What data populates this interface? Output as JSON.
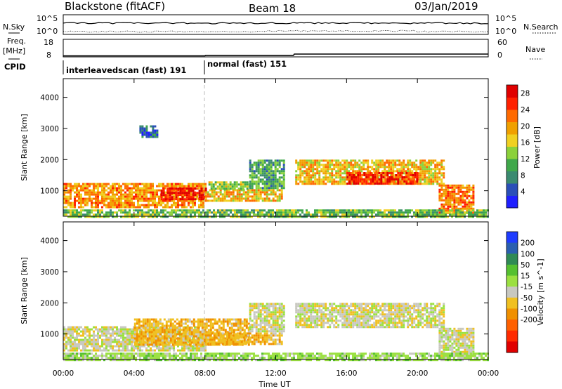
{
  "title": {
    "station": "Blackstone (fitACF)",
    "beam": "Beam 18",
    "date": "03/Jan/2019"
  },
  "summary": {
    "nsky_label": "N.Sky",
    "nsearch_label": "N.Search",
    "nsky_ticks": [
      "10^5",
      "10^0"
    ],
    "freq_label_1": "Freq.",
    "freq_label_2": "[MHz]",
    "freq_ticks": [
      "18",
      "8"
    ],
    "nave_label": "Nave",
    "nave_ticks": [
      "60",
      "0"
    ],
    "cpid_label": "CPID",
    "cpid_segments": [
      {
        "name": "interleavedscan (fast) 191",
        "start_h": 0,
        "end_h": 8
      },
      {
        "name": "normal (fast) 151",
        "start_h": 8,
        "end_h": 24
      }
    ],
    "freq_series": [
      {
        "t": 0,
        "f": 8.6
      },
      {
        "t": 8,
        "f": 8.6
      },
      {
        "t": 8.05,
        "f": 8.9
      },
      {
        "t": 13,
        "f": 8.9
      },
      {
        "t": 13.05,
        "f": 9.6
      },
      {
        "t": 24,
        "f": 9.6
      }
    ]
  },
  "chart_data": [
    {
      "type": "heatmap",
      "parameter": "Power",
      "xlabel": "Time UT",
      "ylabel": "Slant Range [km]",
      "xlim": [
        0,
        24
      ],
      "ylim": [
        180,
        4600
      ],
      "x_ticks": [
        "00:00",
        "04:00",
        "08:00",
        "12:00",
        "16:00",
        "20:00",
        "00:00"
      ],
      "x_tick_values": [
        0,
        4,
        8,
        12,
        16,
        20,
        24
      ],
      "y_ticks": [
        1000,
        2000,
        3000,
        4000
      ],
      "colorbar": {
        "label": "Power [dB]",
        "ticks": [
          4,
          8,
          12,
          16,
          20,
          24,
          28
        ],
        "range": [
          0,
          30
        ],
        "colors": [
          "#1f1fff",
          "#2a4fb8",
          "#3a8a70",
          "#3fa84a",
          "#8bd13a",
          "#f0d020",
          "#f0a000",
          "#ff6a00",
          "#ff2000",
          "#e00000"
        ]
      },
      "regions": [
        {
          "t0": 0,
          "t1": 8,
          "r0": 500,
          "r1": 1250,
          "value": 20
        },
        {
          "t0": 5.5,
          "t1": 8,
          "r0": 700,
          "r1": 1100,
          "value": 28
        },
        {
          "t0": 8,
          "t1": 12.3,
          "r0": 650,
          "r1": 1050,
          "value": 18
        },
        {
          "t0": 8.2,
          "t1": 10.5,
          "r0": 1050,
          "r1": 1300,
          "value": 14
        },
        {
          "t0": 10.5,
          "t1": 12.5,
          "r0": 1100,
          "r1": 2000,
          "value": 10
        },
        {
          "t0": 13.1,
          "t1": 21.5,
          "r0": 1200,
          "r1": 2000,
          "value": 18
        },
        {
          "t0": 16,
          "t1": 20,
          "r0": 1250,
          "r1": 1600,
          "value": 26
        },
        {
          "t0": 21.2,
          "t1": 23.2,
          "r0": 300,
          "r1": 1200,
          "value": 22
        },
        {
          "t0": 0,
          "t1": 24,
          "r0": 180,
          "r1": 400,
          "value": 12
        },
        {
          "t0": 4.3,
          "t1": 5.3,
          "r0": 2700,
          "r1": 3100,
          "value": 6
        }
      ]
    },
    {
      "type": "heatmap",
      "parameter": "Velocity",
      "xlabel": "Time UT",
      "ylabel": "Slant Range [km]",
      "xlim": [
        0,
        24
      ],
      "ylim": [
        180,
        4600
      ],
      "x_ticks": [
        "00:00",
        "04:00",
        "08:00",
        "12:00",
        "16:00",
        "20:00",
        "00:00"
      ],
      "x_tick_values": [
        0,
        4,
        8,
        12,
        16,
        20,
        24
      ],
      "y_ticks": [
        1000,
        2000,
        3000,
        4000
      ],
      "colorbar": {
        "label": "Velocity [m s^-1]",
        "ticks": [
          "200",
          "100",
          "50",
          "15",
          "-15",
          "-50",
          "-100",
          "-200"
        ],
        "colors": [
          "#1f3cff",
          "#2a5fb0",
          "#2f8a55",
          "#55c030",
          "#9be040",
          "#c8c8c0",
          "#f0c020",
          "#f09000",
          "#ff6000",
          "#ff2a00",
          "#e00000"
        ]
      },
      "regions": [
        {
          "t0": 0,
          "t1": 8,
          "r0": 500,
          "r1": 1250,
          "value": 0
        },
        {
          "t0": 4,
          "t1": 10.5,
          "r0": 650,
          "r1": 1500,
          "value": -40
        },
        {
          "t0": 8,
          "t1": 12.3,
          "r0": 650,
          "r1": 1050,
          "value": -40
        },
        {
          "t0": 10.5,
          "t1": 12.5,
          "r0": 1100,
          "r1": 2000,
          "value": 0
        },
        {
          "t0": 13.1,
          "t1": 21.5,
          "r0": 1200,
          "r1": 2000,
          "value": 0
        },
        {
          "t0": 21.2,
          "t1": 23.2,
          "r0": 300,
          "r1": 1200,
          "value": 0
        },
        {
          "t0": 0,
          "t1": 24,
          "r0": 180,
          "r1": 400,
          "value": 30
        }
      ]
    }
  ]
}
